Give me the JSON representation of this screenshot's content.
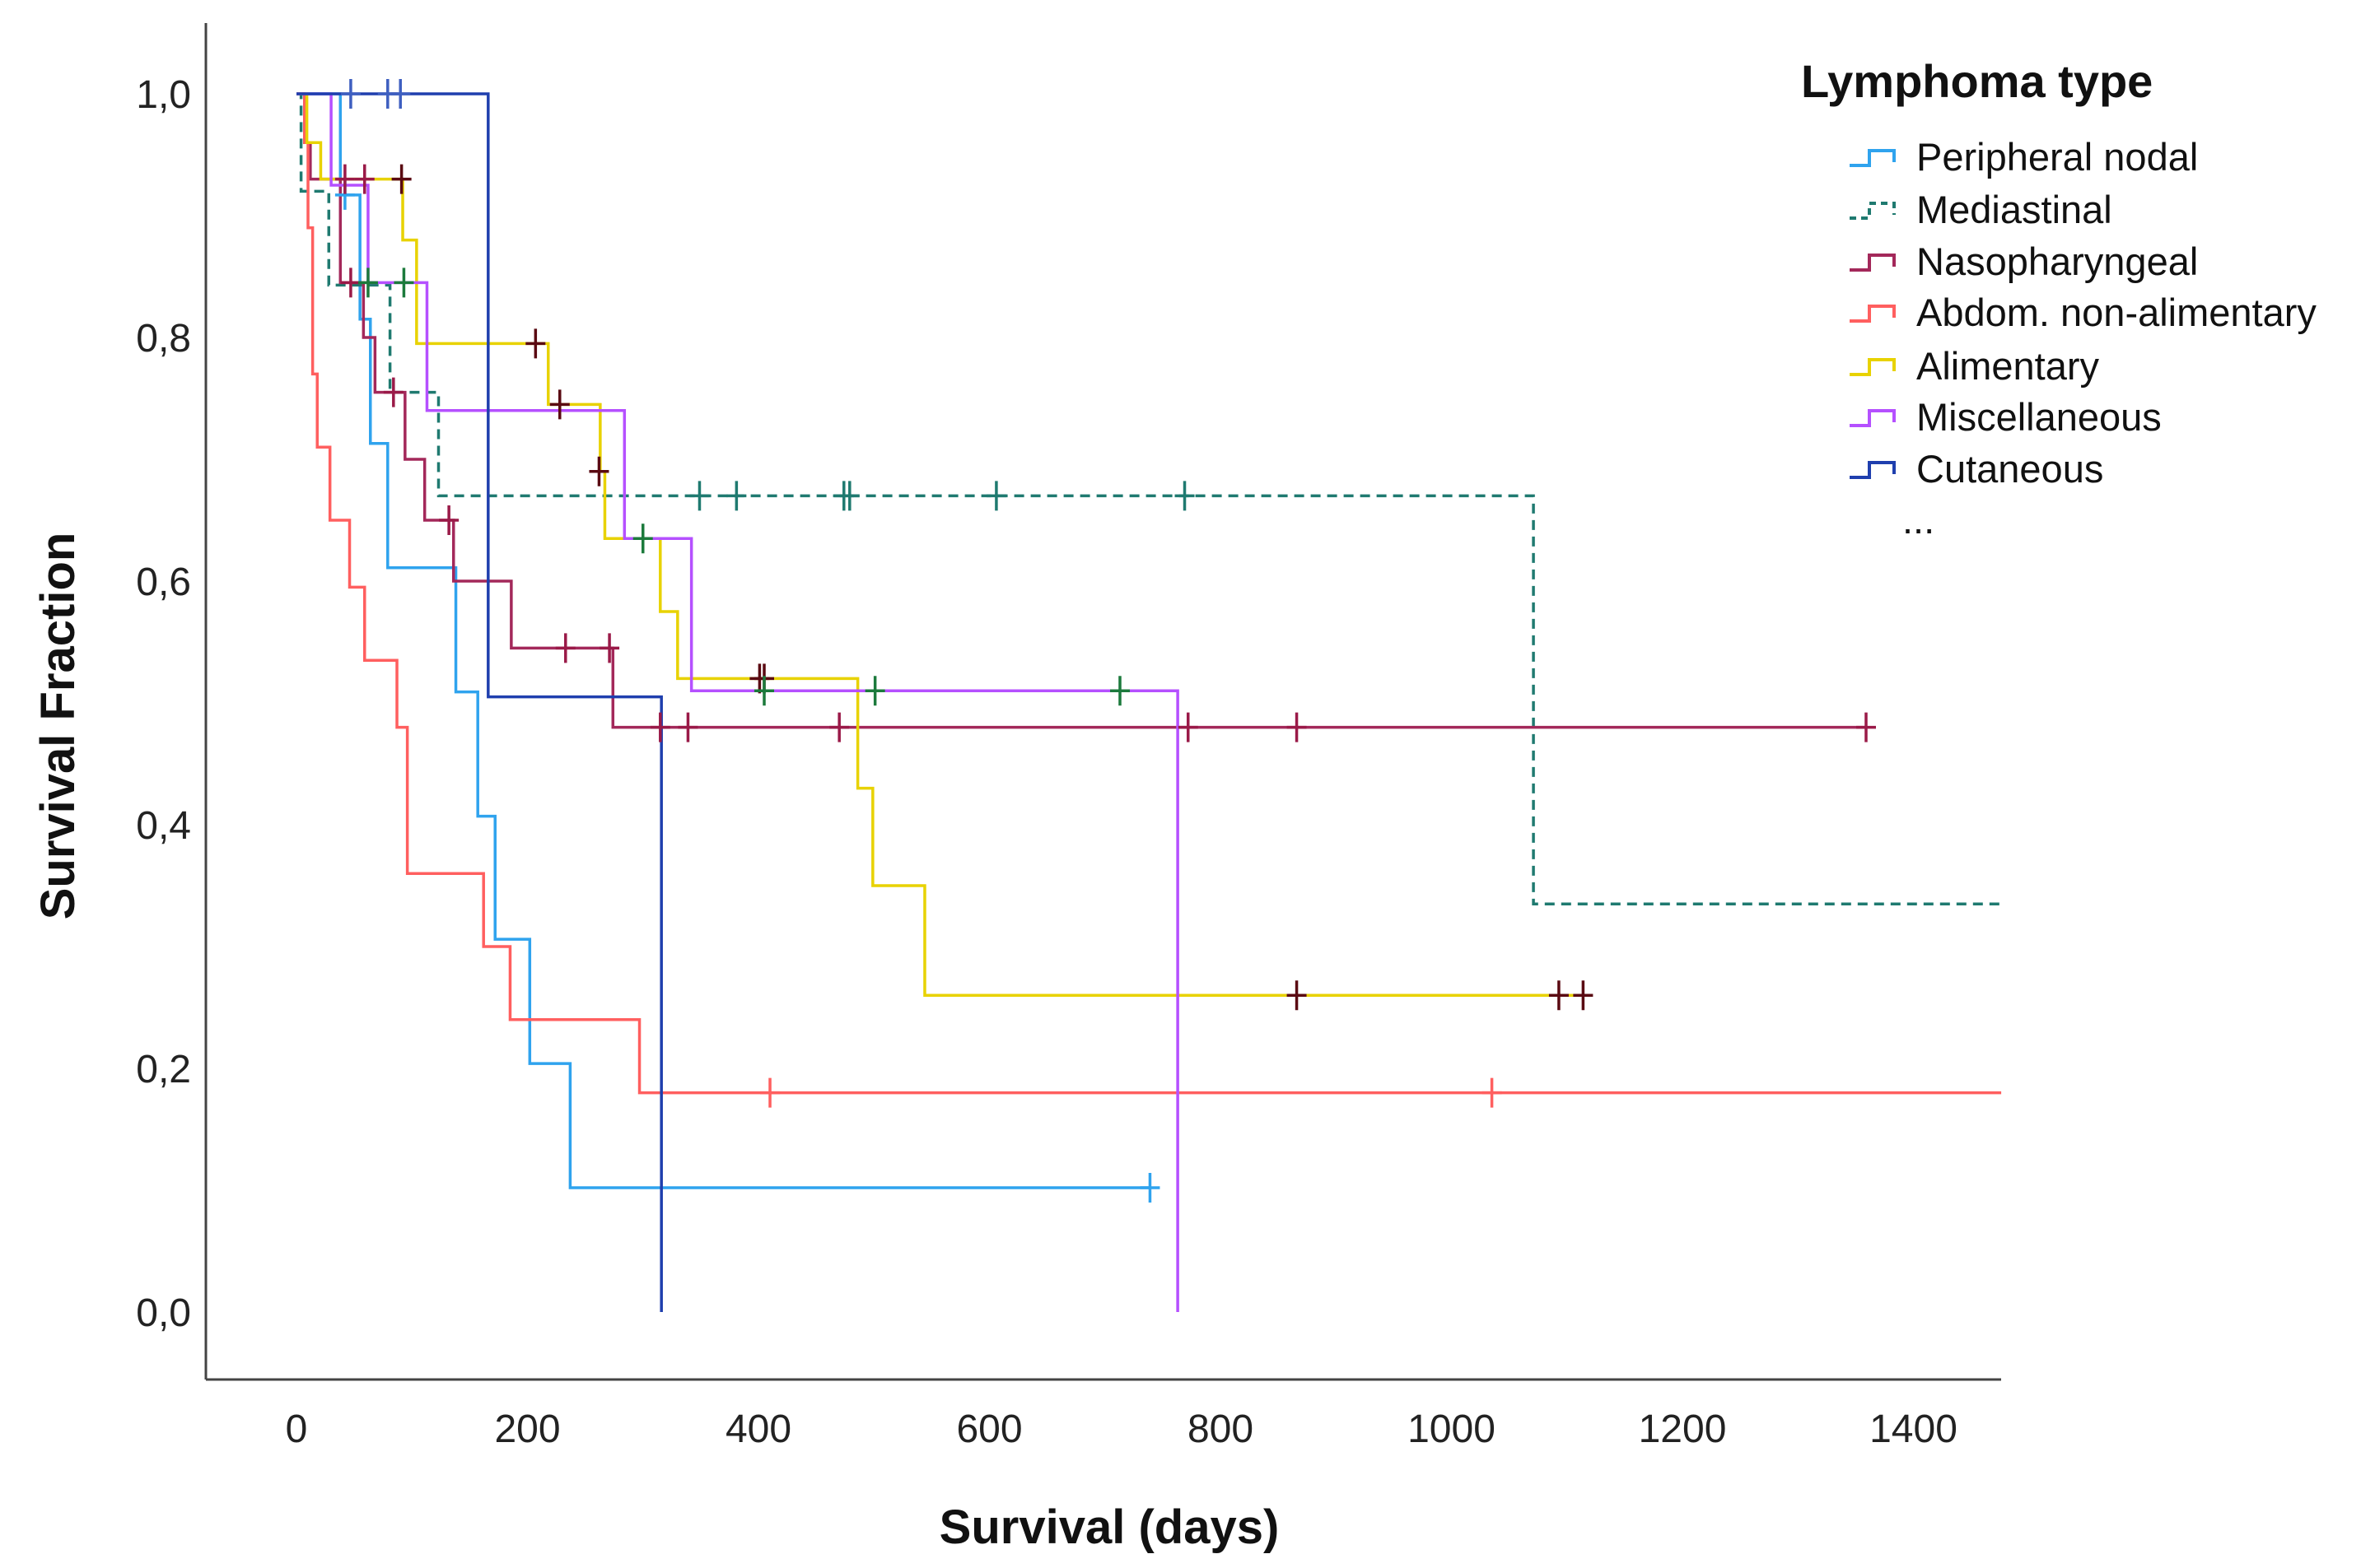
{
  "chart_data": {
    "type": "line",
    "subtype": "kaplan-meier",
    "title": "",
    "xlabel": "Survival (days)",
    "ylabel": "Survival Fraction",
    "xlim": [
      0,
      1400
    ],
    "ylim": [
      0,
      1
    ],
    "xticks": [
      "0",
      "200",
      "400",
      "600",
      "800",
      "1000",
      "1200",
      "1400"
    ],
    "xtick_values": [
      0,
      200,
      400,
      600,
      800,
      1000,
      1200,
      1400
    ],
    "yticks": [
      "0,0",
      "0,2",
      "0,4",
      "0,6",
      "0,8",
      "1,0"
    ],
    "ytick_values": [
      0,
      0.2,
      0.4,
      0.6,
      0.8,
      1.0
    ],
    "grid": false,
    "legend": {
      "title": "Lymphoma type",
      "position": "top-right",
      "more": "..."
    },
    "series": [
      {
        "name": "Peripheral nodal",
        "color": "#2fa3ee",
        "censor_color": "#2fa3ee",
        "dashed": false,
        "steps": [
          [
            0,
            1
          ],
          [
            38,
            0.917
          ],
          [
            55,
            0.815
          ],
          [
            64,
            0.713
          ],
          [
            79,
            0.611
          ],
          [
            138,
            0.509
          ],
          [
            157,
            0.407
          ],
          [
            172,
            0.306
          ],
          [
            202,
            0.204
          ],
          [
            237,
            0.102
          ]
        ],
        "end": 739,
        "censored": [
          [
            42,
            0.917
          ],
          [
            739,
            0.102
          ]
        ]
      },
      {
        "name": "Mediastinal",
        "color": "#1f7a70",
        "censor_color": "#1f7a70",
        "dashed": true,
        "steps": [
          [
            0,
            1
          ],
          [
            4,
            0.92
          ],
          [
            28,
            0.843
          ],
          [
            81,
            0.755
          ],
          [
            123,
            0.67
          ],
          [
            1071,
            0.335
          ]
        ],
        "end": 1476,
        "censored": [
          [
            349,
            0.67
          ],
          [
            381,
            0.67
          ],
          [
            474,
            0.67
          ],
          [
            479,
            0.67
          ],
          [
            606,
            0.67
          ],
          [
            769,
            0.67
          ]
        ]
      },
      {
        "name": "Nasopharyngeal",
        "color": "#a3285a",
        "censor_color": "#9a1a48",
        "dashed": false,
        "steps": [
          [
            0,
            1
          ],
          [
            7,
            0.96
          ],
          [
            12,
            0.93
          ],
          [
            38,
            0.845
          ],
          [
            58,
            0.8
          ],
          [
            68,
            0.755
          ],
          [
            94,
            0.7
          ],
          [
            111,
            0.65
          ],
          [
            136,
            0.6
          ],
          [
            186,
            0.545
          ],
          [
            274,
            0.48
          ]
        ],
        "end": 1359,
        "censored": [
          [
            42,
            0.93
          ],
          [
            59,
            0.93
          ],
          [
            47,
            0.845
          ],
          [
            84,
            0.755
          ],
          [
            132,
            0.65
          ],
          [
            233,
            0.545
          ],
          [
            271,
            0.545
          ],
          [
            315,
            0.48
          ],
          [
            339,
            0.48
          ],
          [
            470,
            0.48
          ],
          [
            772,
            0.48
          ],
          [
            866,
            0.48
          ],
          [
            1359,
            0.48
          ]
        ]
      },
      {
        "name": "Abdom. non-alimentary",
        "color": "#ff5f5f",
        "censor_color": "#ff5f5f",
        "dashed": false,
        "steps": [
          [
            0,
            1
          ],
          [
            7,
            0.96
          ],
          [
            10,
            0.89
          ],
          [
            14,
            0.77
          ],
          [
            18,
            0.71
          ],
          [
            29,
            0.65
          ],
          [
            46,
            0.595
          ],
          [
            59,
            0.535
          ],
          [
            87,
            0.48
          ],
          [
            96,
            0.36
          ],
          [
            162,
            0.3
          ],
          [
            185,
            0.24
          ],
          [
            297,
            0.18
          ]
        ],
        "end": 1476,
        "censored": [
          [
            410,
            0.18
          ],
          [
            1035,
            0.18
          ]
        ]
      },
      {
        "name": "Alimentary",
        "color": "#e8d200",
        "censor_color": "#5a0a12",
        "dashed": false,
        "steps": [
          [
            0,
            1
          ],
          [
            9,
            0.96
          ],
          [
            21,
            0.93
          ],
          [
            92,
            0.88
          ],
          [
            104,
            0.795
          ],
          [
            218,
            0.745
          ],
          [
            263,
            0.69
          ],
          [
            267,
            0.635
          ],
          [
            315,
            0.575
          ],
          [
            330,
            0.52
          ],
          [
            486,
            0.43
          ],
          [
            499,
            0.35
          ],
          [
            544,
            0.26
          ]
        ],
        "end": 1117,
        "censored": [
          [
            91,
            0.93
          ],
          [
            207,
            0.795
          ],
          [
            228,
            0.745
          ],
          [
            262,
            0.69
          ],
          [
            401,
            0.52
          ],
          [
            405,
            0.52
          ],
          [
            866,
            0.26
          ],
          [
            1093,
            0.26
          ],
          [
            1114,
            0.26
          ]
        ]
      },
      {
        "name": "Miscellaneous",
        "color": "#b550ff",
        "censor_color": "#1c7a3c",
        "dashed": false,
        "steps": [
          [
            0,
            1
          ],
          [
            30,
            0.925
          ],
          [
            62,
            0.845
          ],
          [
            113,
            0.74
          ],
          [
            284,
            0.635
          ],
          [
            342,
            0.51
          ],
          [
            763,
            0
          ]
        ],
        "end": 763,
        "censored": [
          [
            62,
            0.845
          ],
          [
            93,
            0.845
          ],
          [
            300,
            0.635
          ],
          [
            405,
            0.51
          ],
          [
            501,
            0.51
          ],
          [
            713,
            0.51
          ]
        ]
      },
      {
        "name": "Cutaneous",
        "color": "#1f3fae",
        "censor_color": "#3e5fc0",
        "dashed": false,
        "steps": [
          [
            0,
            1
          ],
          [
            166,
            0.505
          ],
          [
            316,
            0
          ]
        ],
        "end": 316,
        "censored": [
          [
            47,
            1
          ],
          [
            79,
            1
          ],
          [
            90,
            1
          ]
        ]
      }
    ]
  }
}
